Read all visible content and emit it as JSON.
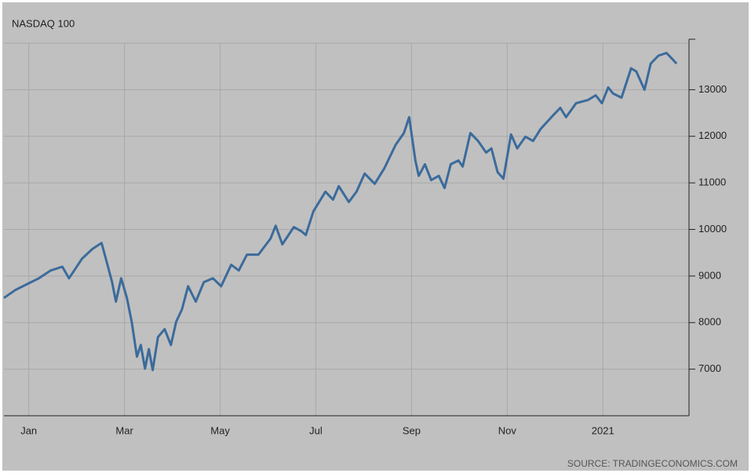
{
  "chart_data": {
    "type": "line",
    "title": "NASDAQ 100",
    "source": "SOURCE: TRADINGECONOMICS.COM",
    "x": [
      -0.52,
      -0.28,
      -0.03,
      0.21,
      0.46,
      0.7,
      0.84,
      0.95,
      1.11,
      1.33,
      1.52,
      1.61,
      1.74,
      1.82,
      1.93,
      2.05,
      2.15,
      2.26,
      2.34,
      2.43,
      2.51,
      2.59,
      2.7,
      2.84,
      2.97,
      3.08,
      3.2,
      3.33,
      3.49,
      3.66,
      3.85,
      4.02,
      4.23,
      4.39,
      4.56,
      4.8,
      5.05,
      5.16,
      5.3,
      5.54,
      5.7,
      5.79,
      5.95,
      6.2,
      6.36,
      6.48,
      6.69,
      6.85,
      7.02,
      7.23,
      7.43,
      7.67,
      7.84,
      7.95,
      8.08,
      8.15,
      8.28,
      8.41,
      8.57,
      8.69,
      8.82,
      8.98,
      9.07,
      9.23,
      9.39,
      9.56,
      9.67,
      9.8,
      9.92,
      10.08,
      10.21,
      10.38,
      10.54,
      10.7,
      10.95,
      11.11,
      11.23,
      11.44,
      11.69,
      11.85,
      11.98,
      12.11,
      12.21,
      12.39,
      12.59,
      12.7,
      12.87,
      13.0,
      13.16,
      13.33,
      13.44,
      13.54
    ],
    "series": [
      {
        "name": "NASDAQ 100",
        "color": "#3b6b9b",
        "values": [
          8530,
          8700,
          8830,
          8950,
          9120,
          9200,
          8950,
          9120,
          9370,
          9580,
          9710,
          9370,
          8870,
          8450,
          8950,
          8530,
          8020,
          7270,
          7520,
          7010,
          7430,
          6980,
          7690,
          7860,
          7520,
          8020,
          8280,
          8780,
          8450,
          8870,
          8950,
          8780,
          9240,
          9120,
          9460,
          9460,
          9800,
          10080,
          9680,
          10050,
          9960,
          9880,
          10390,
          10810,
          10640,
          10930,
          10590,
          10810,
          11200,
          10980,
          11310,
          11820,
          12070,
          12410,
          11480,
          11150,
          11400,
          11060,
          11150,
          10890,
          11400,
          11480,
          11350,
          12070,
          11900,
          11650,
          11740,
          11230,
          11090,
          12040,
          11740,
          11990,
          11900,
          12160,
          12440,
          12610,
          12410,
          12710,
          12780,
          12880,
          12710,
          13050,
          12920,
          12830,
          13460,
          13390,
          13000,
          13560,
          13730,
          13790,
          13670,
          13560
        ]
      }
    ],
    "xlim": [
      -0.52,
      13.8
    ],
    "xticks": [
      {
        "value": 0,
        "label": "Jan"
      },
      {
        "value": 2,
        "label": "Mar"
      },
      {
        "value": 4,
        "label": "May"
      },
      {
        "value": 6,
        "label": "Jul"
      },
      {
        "value": 8,
        "label": "Sep"
      },
      {
        "value": 10,
        "label": "Nov"
      },
      {
        "value": 12,
        "label": "2021"
      }
    ],
    "ylim": [
      6000,
      14000
    ],
    "yticks": [
      7000,
      8000,
      9000,
      10000,
      11000,
      12000,
      13000
    ],
    "grid": true
  }
}
